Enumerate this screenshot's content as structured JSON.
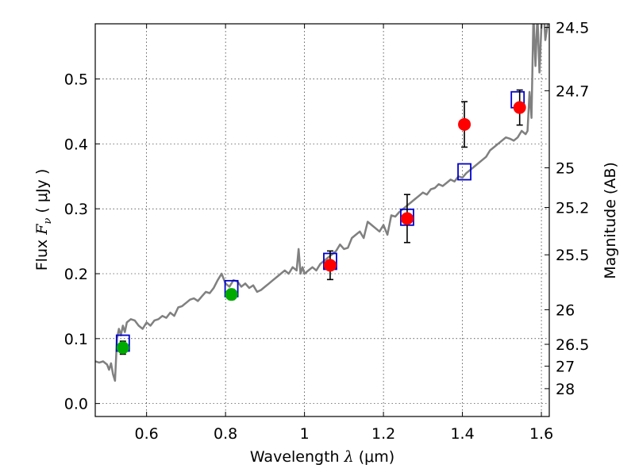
{
  "chart_data": {
    "type": "scatter",
    "xlabel": {
      "pre": "Wavelength  ",
      "sym": "λ",
      "post": " (μm)"
    },
    "ylabel": {
      "pre": "Flux  ",
      "sym": "F",
      "sub": "ν",
      "post": "  ( μJy )"
    },
    "y2label": "Magnitude (AB)",
    "xlim": [
      0.47,
      1.62
    ],
    "ylim": [
      -0.02,
      0.585
    ],
    "grid": true,
    "x_ticks": [
      {
        "v": 0.6,
        "label": "0.6"
      },
      {
        "v": 0.8,
        "label": "0.8"
      },
      {
        "v": 1.0,
        "label": "1"
      },
      {
        "v": 1.2,
        "label": "1.2"
      },
      {
        "v": 1.4,
        "label": "1.4"
      },
      {
        "v": 1.6,
        "label": "1.6"
      }
    ],
    "y_ticks": [
      {
        "v": 0.0,
        "label": "0.0"
      },
      {
        "v": 0.1,
        "label": "0.1"
      },
      {
        "v": 0.2,
        "label": "0.2"
      },
      {
        "v": 0.3,
        "label": "0.3"
      },
      {
        "v": 0.4,
        "label": "0.4"
      },
      {
        "v": 0.5,
        "label": "0.5"
      }
    ],
    "mag_ticks": [
      {
        "v": 0.5794,
        "label": "24.5"
      },
      {
        "v": 0.4819,
        "label": "24.7"
      },
      {
        "v": 0.3631,
        "label": "25"
      },
      {
        "v": 0.302,
        "label": "25.2"
      },
      {
        "v": 0.2291,
        "label": "25.5"
      },
      {
        "v": 0.1445,
        "label": "26"
      },
      {
        "v": 0.0912,
        "label": "26.5"
      },
      {
        "v": 0.0575,
        "label": "27"
      },
      {
        "v": 0.0229,
        "label": "28"
      }
    ],
    "model_spectrum": {
      "name": "model SED",
      "color": "#808080",
      "x": [
        0.47,
        0.48,
        0.49,
        0.5,
        0.505,
        0.51,
        0.515,
        0.52,
        0.525,
        0.53,
        0.535,
        0.54,
        0.545,
        0.55,
        0.56,
        0.57,
        0.58,
        0.59,
        0.6,
        0.61,
        0.62,
        0.63,
        0.64,
        0.65,
        0.66,
        0.67,
        0.68,
        0.69,
        0.7,
        0.71,
        0.72,
        0.73,
        0.74,
        0.75,
        0.76,
        0.77,
        0.78,
        0.79,
        0.8,
        0.81,
        0.82,
        0.83,
        0.84,
        0.85,
        0.86,
        0.87,
        0.88,
        0.89,
        0.9,
        0.91,
        0.92,
        0.93,
        0.94,
        0.95,
        0.96,
        0.97,
        0.98,
        0.985,
        0.99,
        0.995,
        1.0,
        1.01,
        1.02,
        1.03,
        1.04,
        1.05,
        1.06,
        1.07,
        1.08,
        1.09,
        1.1,
        1.11,
        1.12,
        1.13,
        1.14,
        1.15,
        1.16,
        1.17,
        1.18,
        1.19,
        1.2,
        1.21,
        1.22,
        1.23,
        1.24,
        1.25,
        1.26,
        1.27,
        1.28,
        1.29,
        1.3,
        1.31,
        1.32,
        1.33,
        1.34,
        1.35,
        1.36,
        1.37,
        1.38,
        1.39,
        1.4,
        1.41,
        1.42,
        1.43,
        1.44,
        1.45,
        1.46,
        1.47,
        1.48,
        1.49,
        1.5,
        1.51,
        1.52,
        1.53,
        1.54,
        1.55,
        1.56,
        1.565,
        1.57,
        1.575,
        1.58,
        1.585,
        1.59,
        1.595,
        1.6,
        1.605,
        1.61,
        1.62
      ],
      "y": [
        0.065,
        0.063,
        0.065,
        0.06,
        0.052,
        0.062,
        0.045,
        0.035,
        0.1,
        0.115,
        0.105,
        0.12,
        0.11,
        0.125,
        0.13,
        0.128,
        0.12,
        0.115,
        0.125,
        0.12,
        0.128,
        0.13,
        0.135,
        0.132,
        0.14,
        0.135,
        0.148,
        0.15,
        0.155,
        0.16,
        0.162,
        0.158,
        0.165,
        0.172,
        0.17,
        0.178,
        0.19,
        0.2,
        0.185,
        0.18,
        0.19,
        0.188,
        0.18,
        0.185,
        0.178,
        0.182,
        0.172,
        0.175,
        0.18,
        0.185,
        0.19,
        0.195,
        0.2,
        0.205,
        0.2,
        0.21,
        0.205,
        0.238,
        0.2,
        0.21,
        0.2,
        0.205,
        0.21,
        0.205,
        0.215,
        0.22,
        0.225,
        0.23,
        0.235,
        0.245,
        0.238,
        0.24,
        0.255,
        0.26,
        0.265,
        0.255,
        0.28,
        0.275,
        0.27,
        0.265,
        0.275,
        0.26,
        0.29,
        0.288,
        0.295,
        0.3,
        0.305,
        0.31,
        0.315,
        0.32,
        0.325,
        0.322,
        0.33,
        0.332,
        0.338,
        0.335,
        0.34,
        0.345,
        0.342,
        0.35,
        0.348,
        0.355,
        0.36,
        0.365,
        0.37,
        0.375,
        0.38,
        0.39,
        0.395,
        0.4,
        0.405,
        0.41,
        0.408,
        0.405,
        0.41,
        0.42,
        0.415,
        0.42,
        0.48,
        0.44,
        0.6,
        0.52,
        0.6,
        0.51,
        0.58,
        0.62,
        0.56,
        0.6
      ],
      "width": 2.5
    },
    "series": [
      {
        "name": "green photometry",
        "color": "#00aa00",
        "x": [
          0.54,
          0.815
        ],
        "y": [
          0.086,
          0.168
        ],
        "err": [
          0.01,
          0.008
        ]
      },
      {
        "name": "red photometry",
        "color": "#ff0000",
        "x": [
          1.065,
          1.26,
          1.405,
          1.545
        ],
        "y": [
          0.213,
          0.285,
          0.43,
          0.456
        ],
        "err": [
          0.022,
          0.037,
          0.035,
          0.027
        ]
      },
      {
        "name": "model photometry (open squares)",
        "color": "#0000cc",
        "x": [
          0.54,
          0.815,
          1.065,
          1.26,
          1.405,
          1.54
        ],
        "y": [
          0.093,
          0.177,
          0.219,
          0.287,
          0.357,
          0.468
        ]
      }
    ]
  }
}
